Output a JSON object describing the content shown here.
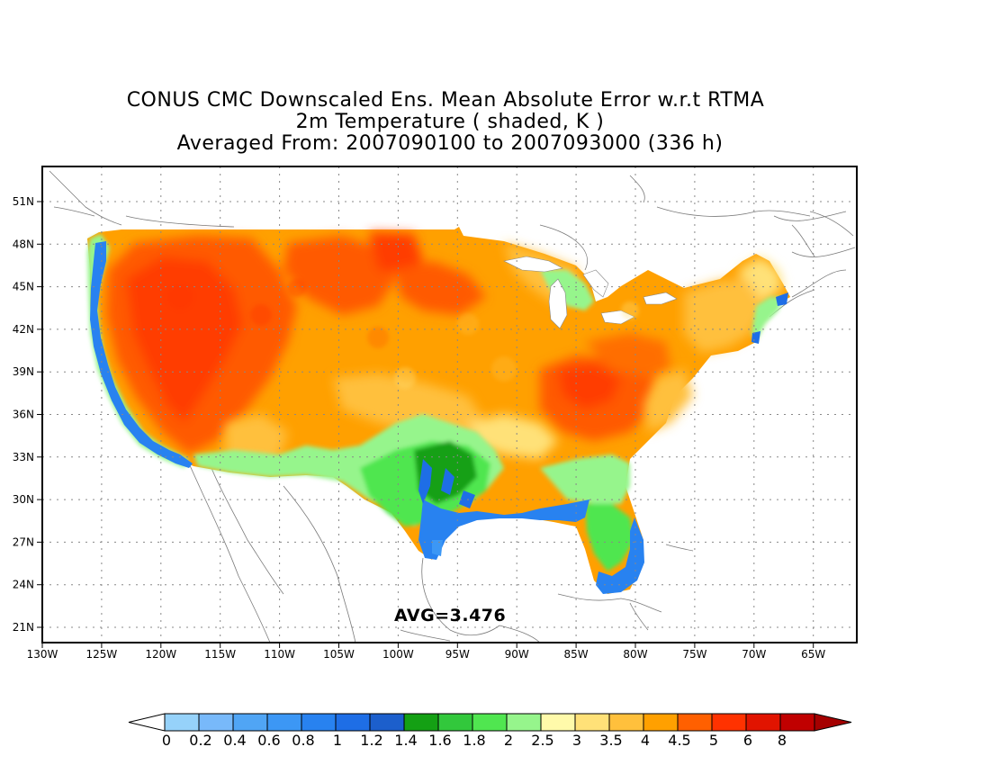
{
  "title": {
    "line1": "CONUS CMC Downscaled Ens. Mean Absolute Error w.r.t RTMA",
    "line2": "2m Temperature ( shaded, K )",
    "line3": "Averaged From: 2007090100 to 2007093000 (336 h)"
  },
  "avg_label": "AVG=3.476",
  "lat_labels": [
    "51N",
    "48N",
    "45N",
    "42N",
    "39N",
    "36N",
    "33N",
    "30N",
    "27N",
    "24N",
    "21N"
  ],
  "lon_labels": [
    "130W",
    "125W",
    "120W",
    "115W",
    "110W",
    "105W",
    "100W",
    "95W",
    "90W",
    "85W",
    "80W",
    "75W",
    "70W",
    "65W"
  ],
  "colorbar": {
    "labels": [
      "0",
      "0.2",
      "0.4",
      "0.6",
      "0.8",
      "1",
      "1.2",
      "1.4",
      "1.6",
      "1.8",
      "2",
      "2.5",
      "3",
      "3.5",
      "4",
      "4.5",
      "5",
      "6",
      "8"
    ],
    "colors": [
      "#96d2fa",
      "#78b9fa",
      "#50a5f5",
      "#3c97f5",
      "#2882f0",
      "#1e6ee6",
      "#1c5fcc",
      "#14a014",
      "#32c83c",
      "#50e650",
      "#96f58c",
      "#fffaaa",
      "#ffe178",
      "#ffc03c",
      "#ffa000",
      "#ff6000",
      "#ff3200",
      "#e11400",
      "#c00000"
    ],
    "under_color": "#ffffff",
    "over_color": "#a50000"
  }
}
